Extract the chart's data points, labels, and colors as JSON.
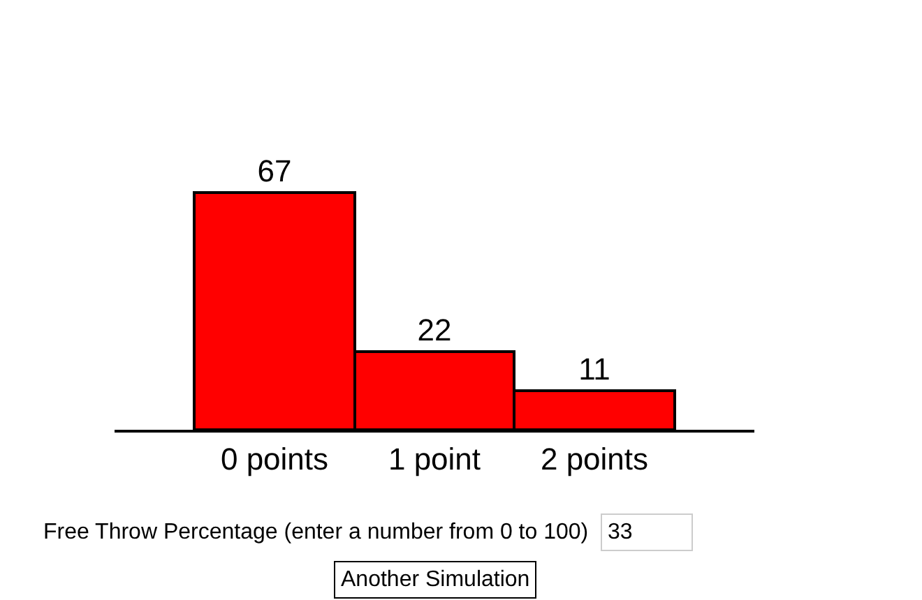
{
  "chart_data": {
    "type": "bar",
    "categories": [
      "0 points",
      "1 point",
      "2 points"
    ],
    "values": [
      67,
      22,
      11
    ],
    "color": "#ff0000",
    "data_labels": true,
    "annotations": [
      "Free Throw Percentage (enter a number from 0 to 100)",
      "33",
      "Another Simulation"
    ]
  }
}
